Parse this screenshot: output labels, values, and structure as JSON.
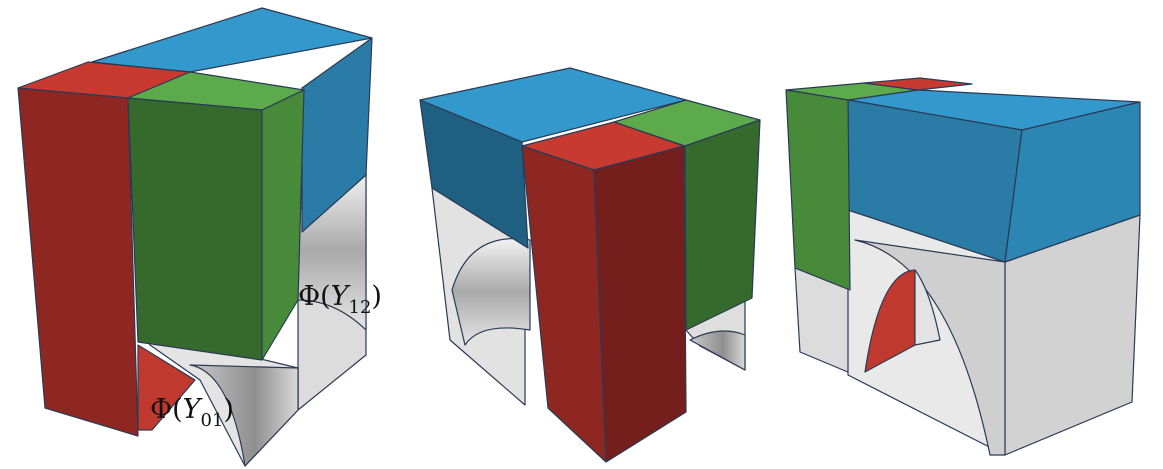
{
  "figure": {
    "panel_count": 3,
    "labels": {
      "phi_y12": {
        "prefix": "Φ(",
        "var": "Y",
        "sub": "12",
        "suffix": ")"
      },
      "phi_y01": {
        "prefix": "Φ(",
        "var": "Y",
        "sub": "01",
        "suffix": ")"
      }
    },
    "colors": {
      "blue_top": "#3399cc",
      "blue_side": "#2a7ca6",
      "blue_dark": "#1f5f82",
      "red_top": "#c83a30",
      "red_side": "#8e2722",
      "red_dark": "#741f1b",
      "green_top": "#5daa4c",
      "green_side": "#478a3a",
      "green_dark": "#356a2c",
      "grey_light": "#ebebeb",
      "grey_mid": "#d4d4d4",
      "grey_dark": "#9a9a9a",
      "edge": "#2a3a55"
    }
  }
}
